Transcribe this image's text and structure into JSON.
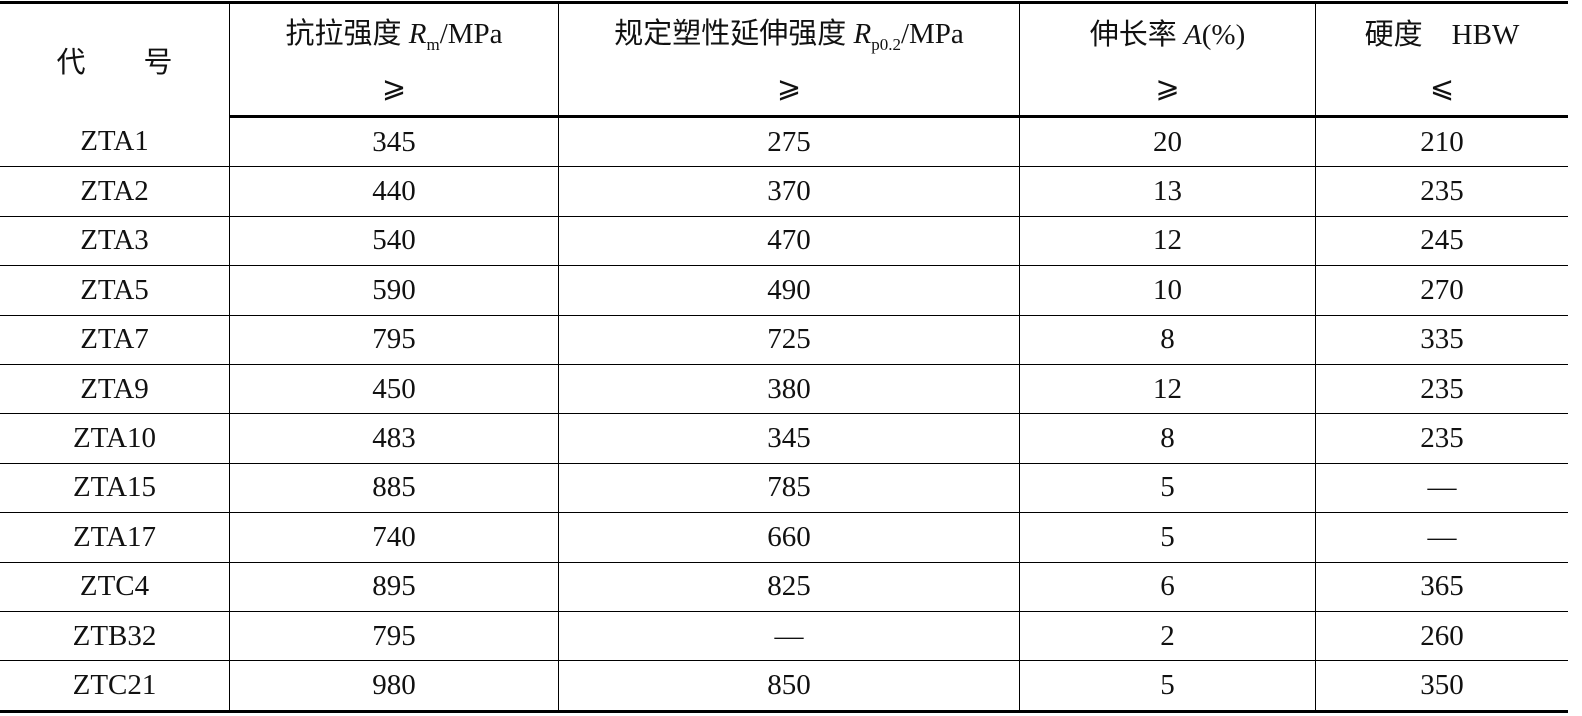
{
  "table": {
    "headers": [
      {
        "label": "代　　号"
      },
      {
        "label_prefix": "抗拉强度 ",
        "symbol": "R",
        "subscript": "m",
        "unit": "/MPa",
        "comparator": "⩾"
      },
      {
        "label_prefix": "规定塑性延伸强度 ",
        "symbol": "R",
        "subscript": "p0.2",
        "unit": "/MPa",
        "comparator": "⩾"
      },
      {
        "label_prefix": "伸长率 ",
        "symbol": "A",
        "subscript": "",
        "unit": "(%)",
        "comparator": "⩾"
      },
      {
        "label_prefix": "硬度　HBW",
        "symbol": "",
        "subscript": "",
        "unit": "",
        "comparator": "⩽"
      }
    ],
    "rows": [
      [
        "ZTA1",
        "345",
        "275",
        "20",
        "210"
      ],
      [
        "ZTA2",
        "440",
        "370",
        "13",
        "235"
      ],
      [
        "ZTA3",
        "540",
        "470",
        "12",
        "245"
      ],
      [
        "ZTA5",
        "590",
        "490",
        "10",
        "270"
      ],
      [
        "ZTA7",
        "795",
        "725",
        "8",
        "335"
      ],
      [
        "ZTA9",
        "450",
        "380",
        "12",
        "235"
      ],
      [
        "ZTA10",
        "483",
        "345",
        "8",
        "235"
      ],
      [
        "ZTA15",
        "885",
        "785",
        "5",
        "—"
      ],
      [
        "ZTA17",
        "740",
        "660",
        "5",
        "—"
      ],
      [
        "ZTC4",
        "895",
        "825",
        "6",
        "365"
      ],
      [
        "ZTB32",
        "795",
        "—",
        "2",
        "260"
      ],
      [
        "ZTC21",
        "980",
        "850",
        "5",
        "350"
      ]
    ]
  }
}
